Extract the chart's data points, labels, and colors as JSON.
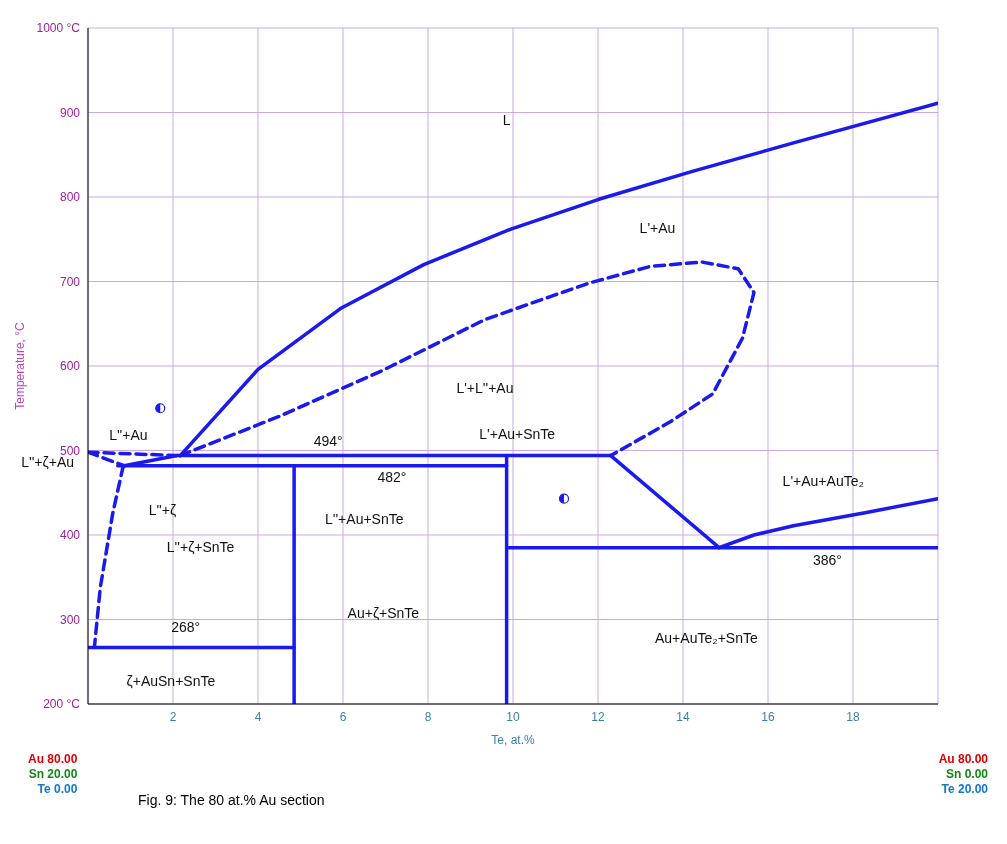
{
  "chart_data": {
    "type": "line",
    "title": "Fig. 9: The 80 at.% Au section",
    "xlabel": "Te, at.%",
    "ylabel": "Temperature, °C",
    "xlim": [
      0,
      20
    ],
    "ylim": [
      200,
      1000
    ],
    "xticks": [
      {
        "value": 0,
        "label": null
      },
      2,
      4,
      6,
      8,
      10,
      12,
      14,
      16,
      18,
      {
        "value": 20,
        "label": null
      }
    ],
    "yticks": [
      {
        "value": 200,
        "label": "200 °C"
      },
      300,
      400,
      500,
      600,
      700,
      800,
      900,
      {
        "value": 1000,
        "label": "1000 °C"
      }
    ],
    "grid": true,
    "marker": "none",
    "series": [
      {
        "color": "#1a1aee",
        "line_style": "solid",
        "x": [
          2.17,
          4,
          5.94,
          7.9,
          9.95,
          12,
          14.2,
          16.6,
          20
        ],
        "values": [
          494,
          596,
          668,
          720,
          762,
          797,
          830,
          864,
          911
        ]
      },
      {
        "color": "#1a1aee",
        "line_style": "solid",
        "x": [
          0.85,
          2.1,
          12.3
        ],
        "values": [
          482,
          494,
          494
        ]
      },
      {
        "color": "#1a1aee",
        "line_style": "solid",
        "x": [
          0.7,
          9.85
        ],
        "values": [
          482,
          482
        ]
      },
      {
        "color": "#1a1aee",
        "line_style": "solid",
        "x": [
          4.85,
          4.85
        ],
        "values": [
          482,
          200
        ]
      },
      {
        "color": "#1a1aee",
        "line_style": "solid",
        "x": [
          9.85,
          9.85
        ],
        "values": [
          494,
          200
        ]
      },
      {
        "color": "#1a1aee",
        "line_style": "solid",
        "x": [
          12.3,
          14.85
        ],
        "values": [
          494,
          385
        ]
      },
      {
        "color": "#1a1aee",
        "line_style": "solid",
        "x": [
          9.85,
          20
        ],
        "values": [
          385,
          385
        ]
      },
      {
        "color": "#1a1aee",
        "line_style": "solid",
        "x": [
          14.85,
          15.67,
          16.6,
          18.35,
          20
        ],
        "values": [
          385,
          400,
          411,
          427,
          443
        ]
      },
      {
        "color": "#1a1aee",
        "line_style": "solid",
        "x": [
          0,
          4.85
        ],
        "values": [
          267,
          267
        ]
      },
      {
        "color": "#1a1aee",
        "line_style": "dashed",
        "x": [
          2.17,
          4.48,
          6.9,
          9.34,
          11.78,
          13.24,
          14.45,
          15.3,
          15.67,
          15.4,
          14.7,
          13.7,
          12.3
        ],
        "values": [
          494,
          540,
          594,
          655,
          698,
          718,
          723,
          715,
          687,
          633,
          567,
          534,
          494
        ]
      },
      {
        "color": "#1a1aee",
        "line_style": "dashed",
        "x": [
          0.83,
          0.58,
          0.29,
          0.15
        ],
        "values": [
          482,
          425,
          338,
          267
        ]
      },
      {
        "color": "#1a1aee",
        "line_style": "dashed",
        "x": [
          0,
          2.1
        ],
        "values": [
          498,
          494
        ]
      },
      {
        "color": "#1a1aee",
        "line_style": "dashed",
        "x": [
          0,
          0.85
        ],
        "values": [
          498,
          482
        ]
      }
    ],
    "annotations": [
      "L",
      "L'+Au",
      "L'+L''+Au",
      "L''+Au",
      "L''+ζ+Au",
      "L''+ζ",
      "L''+ζ+SnTe",
      "494°",
      "482°",
      "L''+Au+SnTe",
      "L'+Au+SnTe",
      "L'+Au+AuTe₂",
      "386°",
      "268°",
      "Au+ζ+SnTe",
      "Au+AuTe₂+SnTe",
      "ζ+AuSn+SnTe",
      "Au 80.00",
      "Sn 20.00",
      "Te 0.00",
      "Au 80.00",
      "Sn 0.00",
      "Te 20.00"
    ]
  }
}
